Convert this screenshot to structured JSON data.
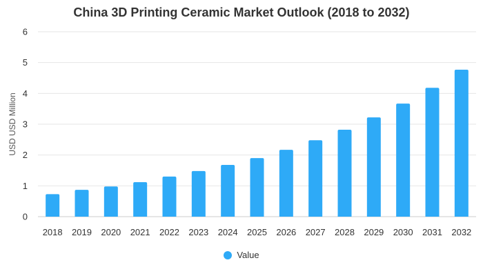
{
  "chart_data": {
    "type": "bar",
    "title": "China 3D Printing Ceramic Market Outlook (2018 to 2032)",
    "xlabel": "",
    "ylabel": "USD USD Million",
    "ylim": [
      0,
      6
    ],
    "yticks": [
      0,
      1,
      2,
      3,
      4,
      5,
      6
    ],
    "categories": [
      "2018",
      "2019",
      "2020",
      "2021",
      "2022",
      "2023",
      "2024",
      "2025",
      "2026",
      "2027",
      "2028",
      "2029",
      "2030",
      "2031",
      "2032"
    ],
    "series": [
      {
        "name": "Value",
        "color": "#2eaaf7",
        "values": [
          0.73,
          0.87,
          0.98,
          1.12,
          1.3,
          1.48,
          1.68,
          1.9,
          2.17,
          2.48,
          2.82,
          3.22,
          3.67,
          4.18,
          4.77
        ]
      }
    ],
    "grid": true,
    "legend_position": "bottom"
  }
}
